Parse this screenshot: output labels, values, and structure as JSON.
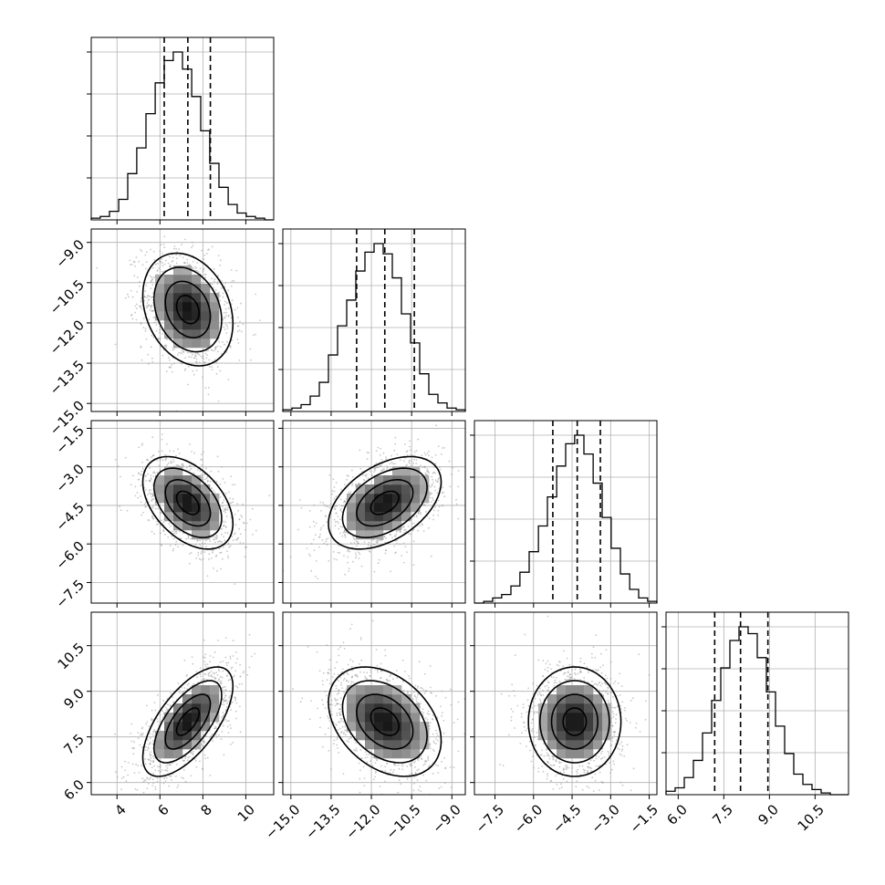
{
  "chart_data": {
    "type": "corner",
    "parameters": [
      {
        "name": "",
        "lim": [
          2.8,
          11.3
        ],
        "ticks": [
          4,
          6,
          8,
          10
        ],
        "tick_labels": [
          "4",
          "6",
          "8",
          "10"
        ],
        "quantiles": [
          6.2,
          7.3,
          8.35
        ],
        "hist_bins": [
          2.8,
          3.22,
          3.65,
          4.08,
          4.5,
          4.92,
          5.35,
          5.78,
          6.2,
          6.62,
          7.05,
          7.48,
          7.9,
          8.32,
          8.75,
          9.18,
          9.6,
          10.02,
          10.45,
          10.88,
          11.3
        ],
        "hist_counts": [
          0.01,
          0.02,
          0.05,
          0.12,
          0.27,
          0.42,
          0.62,
          0.8,
          0.93,
          0.98,
          0.88,
          0.72,
          0.52,
          0.33,
          0.19,
          0.09,
          0.04,
          0.02,
          0.01,
          0.0
        ]
      },
      {
        "name": "",
        "lim": [
          -15.3,
          -8.5
        ],
        "ticks": [
          -15.0,
          -13.5,
          -12.0,
          -10.5,
          -9.0
        ],
        "tick_labels": [
          "−15.0",
          "−13.5",
          "−12.0",
          "−10.5",
          "−9.0"
        ],
        "quantiles": [
          -12.55,
          -11.5,
          -10.4
        ],
        "hist_bins": [
          -15.3,
          -14.96,
          -14.62,
          -14.28,
          -13.94,
          -13.6,
          -13.26,
          -12.92,
          -12.58,
          -12.24,
          -11.9,
          -11.56,
          -11.22,
          -10.88,
          -10.54,
          -10.2,
          -9.86,
          -9.52,
          -9.18,
          -8.84,
          -8.5
        ],
        "hist_counts": [
          0.01,
          0.02,
          0.04,
          0.09,
          0.17,
          0.33,
          0.5,
          0.65,
          0.82,
          0.93,
          0.98,
          0.92,
          0.78,
          0.57,
          0.4,
          0.22,
          0.1,
          0.05,
          0.02,
          0.01
        ]
      },
      {
        "name": "",
        "lim": [
          -8.3,
          -1.2
        ],
        "ticks": [
          -7.5,
          -6.0,
          -4.5,
          -3.0,
          -1.5
        ],
        "tick_labels": [
          "−7.5",
          "−6.0",
          "−4.5",
          "−3.0",
          "−1.5"
        ],
        "quantiles": [
          -5.25,
          -4.3,
          -3.4
        ],
        "hist_bins": [
          -8.3,
          -7.94,
          -7.59,
          -7.24,
          -6.88,
          -6.53,
          -6.17,
          -5.81,
          -5.46,
          -5.1,
          -4.75,
          -4.4,
          -4.04,
          -3.68,
          -3.33,
          -2.98,
          -2.62,
          -2.26,
          -1.91,
          -1.56,
          -1.2
        ],
        "hist_counts": [
          0.0,
          0.01,
          0.03,
          0.05,
          0.1,
          0.18,
          0.3,
          0.45,
          0.62,
          0.8,
          0.93,
          0.98,
          0.87,
          0.7,
          0.5,
          0.32,
          0.17,
          0.08,
          0.03,
          0.01
        ]
      },
      {
        "name": "",
        "lim": [
          5.6,
          11.6
        ],
        "ticks": [
          6.0,
          7.5,
          9.0,
          10.5
        ],
        "tick_labels": [
          "6.0",
          "7.5",
          "9.0",
          "10.5"
        ],
        "quantiles": [
          7.2,
          8.05,
          8.95
        ],
        "hist_bins": [
          5.6,
          5.9,
          6.2,
          6.5,
          6.8,
          7.1,
          7.4,
          7.7,
          8.0,
          8.3,
          8.6,
          8.9,
          9.2,
          9.5,
          9.8,
          10.1,
          10.4,
          10.7,
          11.0,
          11.3,
          11.6
        ],
        "hist_counts": [
          0.02,
          0.04,
          0.1,
          0.2,
          0.36,
          0.55,
          0.74,
          0.9,
          0.98,
          0.94,
          0.8,
          0.6,
          0.4,
          0.24,
          0.12,
          0.06,
          0.03,
          0.01,
          0.0,
          0.0
        ]
      }
    ],
    "pairs": [
      {
        "row": 1,
        "col": 0,
        "mean": [
          7.3,
          -11.5
        ],
        "sd": [
          1.05,
          1.05
        ],
        "rho": -0.25
      },
      {
        "row": 2,
        "col": 0,
        "mean": [
          7.3,
          -4.4
        ],
        "sd": [
          1.05,
          0.9
        ],
        "rho": -0.45
      },
      {
        "row": 2,
        "col": 1,
        "mean": [
          -11.5,
          -4.4
        ],
        "sd": [
          1.05,
          0.9
        ],
        "rho": 0.45
      },
      {
        "row": 3,
        "col": 0,
        "mean": [
          7.3,
          8.0
        ],
        "sd": [
          1.05,
          0.9
        ],
        "rho": 0.65
      },
      {
        "row": 3,
        "col": 1,
        "mean": [
          -11.5,
          8.0
        ],
        "sd": [
          1.05,
          0.9
        ],
        "rho": -0.35
      },
      {
        "row": 3,
        "col": 2,
        "mean": [
          -4.4,
          8.0
        ],
        "sd": [
          0.9,
          0.9
        ],
        "rho": 0.0
      }
    ],
    "contour_levels_sigma": [
      0.5,
      1.0,
      1.5,
      2.0
    ],
    "grid": true
  }
}
